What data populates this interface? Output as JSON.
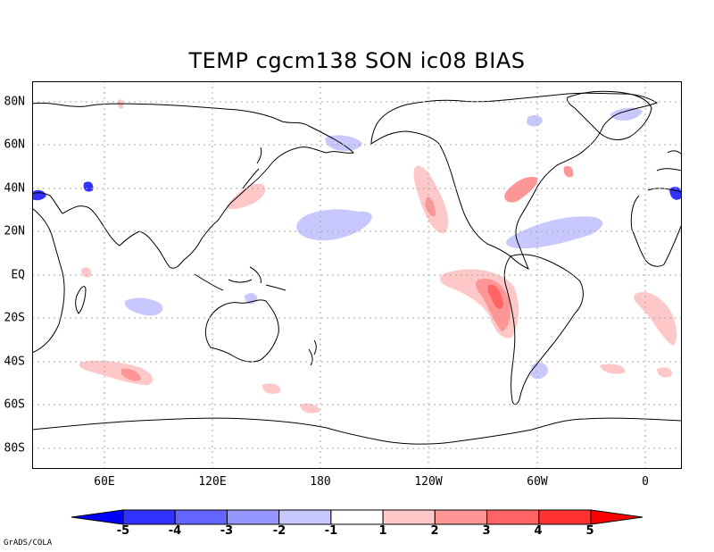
{
  "title": "TEMP cgcm138 SON ic08 BIAS",
  "lat_labels": [
    "80N",
    "60N",
    "40N",
    "20N",
    "EQ",
    "20S",
    "40S",
    "60S",
    "80S"
  ],
  "lon_labels": [
    "60E",
    "120E",
    "180",
    "120W",
    "60W",
    "0"
  ],
  "colorbar": {
    "labels": [
      "-5",
      "-4",
      "-3",
      "-2",
      "-1",
      "1",
      "2",
      "3",
      "4",
      "5"
    ],
    "colors": [
      "#0000ff",
      "#3232ff",
      "#6464ff",
      "#9696ff",
      "#c8c8ff",
      "#ffffff",
      "#ffc8c8",
      "#ff9696",
      "#ff6464",
      "#ff3232",
      "#ff0000"
    ]
  },
  "credit": "GrADS/COLA",
  "grid_color": "#aaaaaa"
}
